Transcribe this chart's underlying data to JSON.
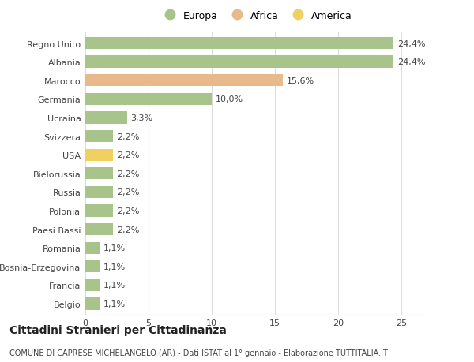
{
  "categories": [
    "Regno Unito",
    "Albania",
    "Marocco",
    "Germania",
    "Ucraina",
    "Svizzera",
    "USA",
    "Bielorussia",
    "Russia",
    "Polonia",
    "Paesi Bassi",
    "Romania",
    "Bosnia-Erzegovina",
    "Francia",
    "Belgio"
  ],
  "values": [
    24.4,
    24.4,
    15.6,
    10.0,
    3.3,
    2.2,
    2.2,
    2.2,
    2.2,
    2.2,
    2.2,
    1.1,
    1.1,
    1.1,
    1.1
  ],
  "labels": [
    "24,4%",
    "24,4%",
    "15,6%",
    "10,0%",
    "3,3%",
    "2,2%",
    "2,2%",
    "2,2%",
    "2,2%",
    "2,2%",
    "2,2%",
    "1,1%",
    "1,1%",
    "1,1%",
    "1,1%"
  ],
  "colors": [
    "#a8c48a",
    "#a8c48a",
    "#e8b98a",
    "#a8c48a",
    "#a8c48a",
    "#a8c48a",
    "#f0d060",
    "#a8c48a",
    "#a8c48a",
    "#a8c48a",
    "#a8c48a",
    "#a8c48a",
    "#a8c48a",
    "#a8c48a",
    "#a8c48a"
  ],
  "legend_labels": [
    "Europa",
    "Africa",
    "America"
  ],
  "legend_colors": [
    "#a8c48a",
    "#e8b98a",
    "#f0d060"
  ],
  "title": "Cittadini Stranieri per Cittadinanza",
  "subtitle": "COMUNE DI CAPRESE MICHELANGELO (AR) - Dati ISTAT al 1° gennaio - Elaborazione TUTTITALIA.IT",
  "xlim": [
    0,
    27
  ],
  "xticks": [
    0,
    5,
    10,
    15,
    20,
    25
  ],
  "background_color": "#ffffff",
  "grid_color": "#dddddd",
  "text_color": "#444444",
  "label_fontsize": 8,
  "tick_fontsize": 8,
  "title_fontsize": 10,
  "subtitle_fontsize": 7,
  "bar_height": 0.65
}
